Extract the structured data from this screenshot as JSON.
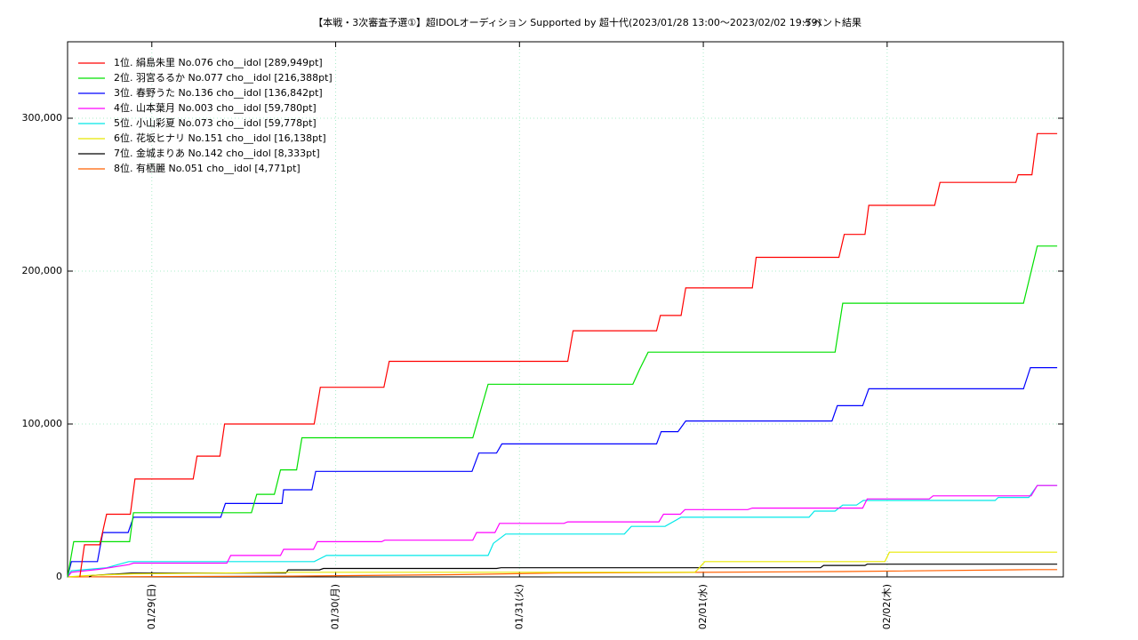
{
  "chart_data": {
    "type": "line",
    "title": "【本戦・3次審査予選①】超IDOLオーディション Supported by 超十代(2023/01/28 13:00～2023/02/02 19:59)",
    "subtitle": "イベント結果",
    "xlim": [
      0,
      130
    ],
    "xticks": [
      {
        "value": 11,
        "label": "01/29(日)"
      },
      {
        "value": 35,
        "label": "01/30(月)"
      },
      {
        "value": 59,
        "label": "01/31(火)"
      },
      {
        "value": 83,
        "label": "02/01(水)"
      },
      {
        "value": 107,
        "label": "02/02(木)"
      }
    ],
    "ylim": [
      0,
      350000
    ],
    "yticks": [
      0,
      {
        "value": 100000,
        "label": "100,000"
      },
      {
        "value": 200000,
        "label": "200,000"
      },
      {
        "value": 300000,
        "label": "300,000"
      }
    ],
    "grid": true,
    "legend": "upper-left",
    "series": [
      {
        "name": "1位. 絹島朱里 No.076 cho__idol [289,949pt]",
        "color": "#ff0000",
        "x": [
          1.6,
          2.2,
          4.2,
          5.1,
          8.2,
          8.8,
          16.4,
          16.9,
          19.9,
          20.5,
          32.2,
          33.0,
          41.3,
          42.0,
          65.3,
          66.0,
          76.9,
          77.4,
          80.1,
          80.7,
          89.4,
          89.9,
          100.7,
          101.4,
          104.1,
          104.6,
          113.2,
          113.9,
          123.8,
          124.1,
          125.9,
          126.6,
          129.2
        ],
        "values": [
          0,
          21000,
          21000,
          41000,
          41000,
          64000,
          64000,
          79000,
          79000,
          100000,
          100000,
          124000,
          124000,
          141000,
          141000,
          161000,
          161000,
          171000,
          171000,
          189000,
          189000,
          209000,
          209000,
          224000,
          224000,
          243000,
          243000,
          258000,
          258000,
          263000,
          263000,
          289949,
          289949
        ]
      },
      {
        "name": "2位. 羽宮るるか No.077 cho__idol [216,388pt]",
        "color": "#00e000",
        "x": [
          0,
          0.8,
          8.1,
          8.6,
          24.0,
          24.7,
          27.0,
          27.8,
          29.9,
          30.6,
          52.9,
          54.9,
          73.8,
          74.7,
          75.8,
          100.2,
          101.2,
          124.8,
          126.6,
          129.2
        ],
        "values": [
          0,
          23000,
          23000,
          42000,
          42000,
          54000,
          54000,
          70000,
          70000,
          91000,
          91000,
          126000,
          126000,
          136000,
          147000,
          147000,
          179000,
          179000,
          216388,
          216388
        ]
      },
      {
        "name": "3位. 春野うた No.136 cho__idol [136,842pt]",
        "color": "#0000ff",
        "x": [
          0,
          0.5,
          3.9,
          4.6,
          7.9,
          8.6,
          20.0,
          20.6,
          28.0,
          28.2,
          31.9,
          32.4,
          52.8,
          53.7,
          56.0,
          56.7,
          76.9,
          77.5,
          79.7,
          80.7,
          99.8,
          100.5,
          103.8,
          104.6,
          124.8,
          125.7,
          129.2
        ],
        "values": [
          0,
          10000,
          10000,
          29000,
          29000,
          39000,
          39000,
          48000,
          48000,
          57000,
          57000,
          69000,
          69000,
          81000,
          81000,
          87000,
          87000,
          95000,
          95000,
          102000,
          102000,
          112000,
          112000,
          123000,
          123000,
          136842,
          136842
        ]
      },
      {
        "name": "4位. 山本葉月 No.003 cho__idol [59,780pt]",
        "color": "#ff00ff",
        "x": [
          0,
          0.5,
          4.2,
          8.0,
          8.6,
          20.8,
          21.3,
          27.8,
          28.2,
          32.1,
          32.6,
          41.0,
          41.4,
          52.9,
          53.4,
          55.8,
          56.4,
          64.8,
          65.3,
          77.2,
          77.8,
          80.0,
          80.6,
          88.8,
          89.4,
          103.8,
          104.4,
          112.5,
          113.0,
          125.8,
          126.6,
          129.2
        ],
        "values": [
          0,
          3000,
          5000,
          8000,
          9000,
          9000,
          14000,
          14000,
          18000,
          18000,
          23000,
          23000,
          24000,
          24000,
          29000,
          29000,
          35000,
          35000,
          36000,
          36000,
          41000,
          41000,
          44000,
          44000,
          45000,
          45000,
          51000,
          51000,
          53000,
          53000,
          59780,
          59780
        ]
      },
      {
        "name": "5位. 小山彩夏 No.073 cho__idol [59,778pt]",
        "color": "#00e8e8",
        "x": [
          0,
          0.5,
          5.1,
          8.0,
          32.2,
          33.8,
          54.9,
          55.6,
          57.2,
          72.7,
          73.6,
          78.0,
          80.1,
          96.8,
          97.5,
          100.2,
          101.2,
          103.0,
          103.9,
          121.1,
          121.5,
          125.5,
          126.6,
          129.2
        ],
        "values": [
          0,
          4000,
          6000,
          10000,
          10000,
          14000,
          14000,
          22000,
          28000,
          28000,
          33000,
          33000,
          39000,
          39000,
          43000,
          43000,
          47000,
          47000,
          50000,
          50000,
          52000,
          52000,
          59778,
          59778
        ]
      },
      {
        "name": "6位. 花坂ヒナリ No.151 cho__idol [16,138pt]",
        "color": "#e8e800",
        "x": [
          0,
          2.8,
          8.6,
          29.4,
          81.9,
          82.3,
          83.2,
          106.7,
          107.3,
          129.2
        ],
        "values": [
          0,
          1000,
          2000,
          3000,
          3000,
          5000,
          10000,
          10000,
          16138,
          16138
        ]
      },
      {
        "name": "7位. 金城まりあ No.142 cho__idol [8,333pt]",
        "color": "#000000",
        "x": [
          2.8,
          3.2,
          8.3,
          28.5,
          28.8,
          32.9,
          33.4,
          56.0,
          56.6,
          98.3,
          98.7,
          104.1,
          104.4,
          129.2
        ],
        "values": [
          0,
          1000,
          2500,
          2500,
          4600,
          4600,
          5500,
          5500,
          6000,
          6000,
          7500,
          7500,
          8333,
          8333
        ]
      },
      {
        "name": "8位. 有栖麗 No.051 cho__idol [4,771pt]",
        "color": "#ff6000",
        "x": [
          0,
          29.4,
          51.4,
          64.1,
          101.2,
          126.0,
          129.2
        ],
        "values": [
          0,
          500,
          1500,
          2500,
          3500,
          4771,
          4771
        ]
      }
    ]
  }
}
